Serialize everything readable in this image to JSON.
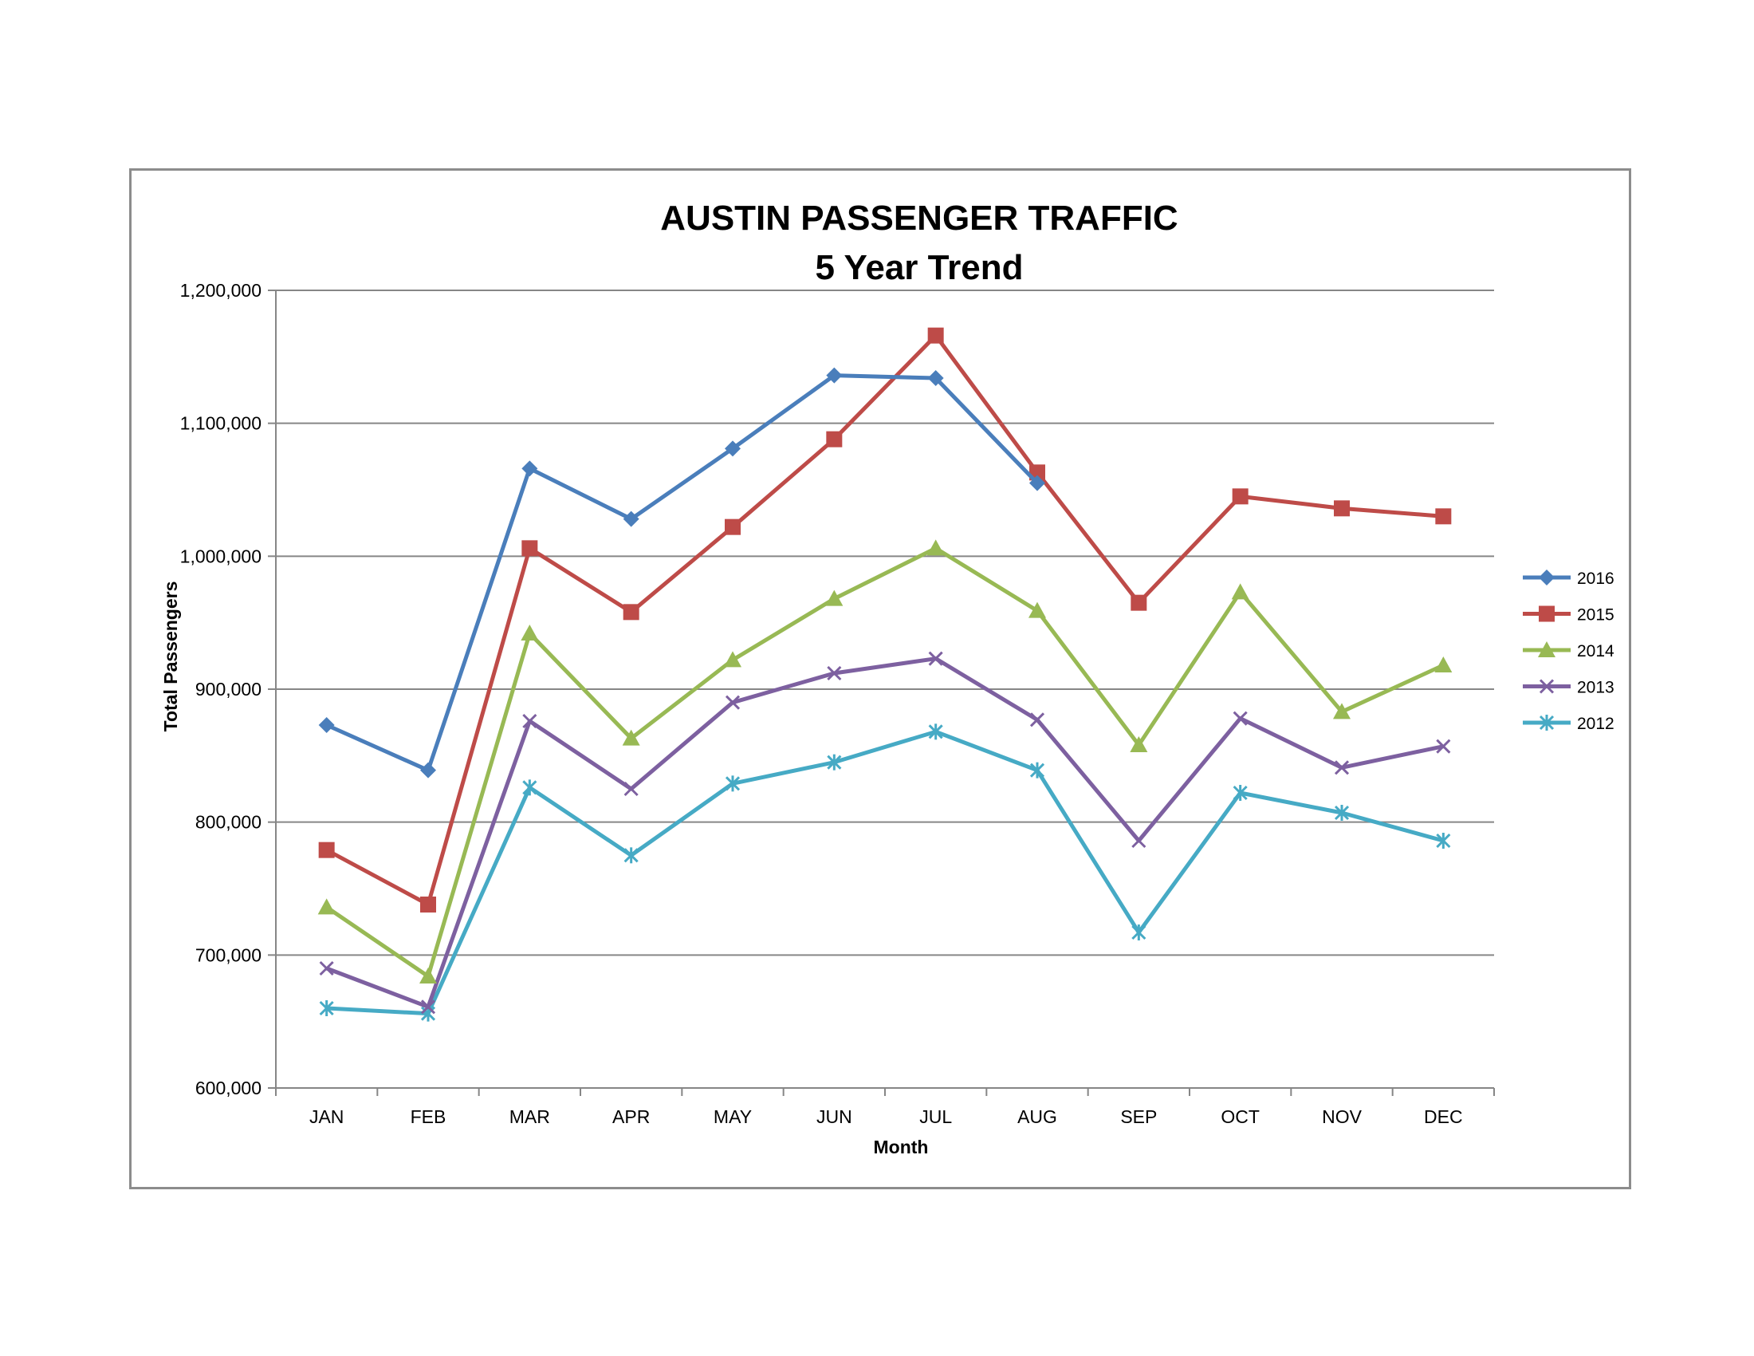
{
  "chart_data": {
    "type": "line",
    "title": [
      "AUSTIN PASSENGER TRAFFIC",
      "5 Year Trend"
    ],
    "xlabel": "Month",
    "ylabel": "Total Passengers",
    "categories": [
      "JAN",
      "FEB",
      "MAR",
      "APR",
      "MAY",
      "JUN",
      "JUL",
      "AUG",
      "SEP",
      "OCT",
      "NOV",
      "DEC"
    ],
    "ylim": [
      600000,
      1200000
    ],
    "yticks": [
      600000,
      700000,
      800000,
      900000,
      1000000,
      1100000,
      1200000
    ],
    "ytick_labels": [
      "600,000",
      "700,000",
      "800,000",
      "900,000",
      "1,000,000",
      "1,100,000",
      "1,200,000"
    ],
    "grid": true,
    "legend": "right",
    "series": [
      {
        "name": "2016",
        "color": "#4a7ebb",
        "marker": "diamond",
        "values": [
          873000,
          839000,
          1066000,
          1028000,
          1081000,
          1136000,
          1134000,
          1055000,
          null,
          null,
          null,
          null
        ]
      },
      {
        "name": "2015",
        "color": "#be4b48",
        "marker": "square",
        "values": [
          779000,
          738000,
          1006000,
          958000,
          1022000,
          1088000,
          1166000,
          1063000,
          965000,
          1045000,
          1036000,
          1030000
        ]
      },
      {
        "name": "2014",
        "color": "#98b954",
        "marker": "triangle",
        "values": [
          736000,
          684000,
          942000,
          863000,
          922000,
          968000,
          1006000,
          959000,
          858000,
          973000,
          883000,
          918000
        ]
      },
      {
        "name": "2013",
        "color": "#7d60a0",
        "marker": "x",
        "values": [
          690000,
          661000,
          876000,
          825000,
          890000,
          912000,
          923000,
          877000,
          786000,
          878000,
          841000,
          857000
        ]
      },
      {
        "name": "2012",
        "color": "#46aac5",
        "marker": "star",
        "values": [
          660000,
          656000,
          826000,
          775000,
          829000,
          845000,
          868000,
          839000,
          717000,
          822000,
          807000,
          786000
        ]
      }
    ]
  }
}
